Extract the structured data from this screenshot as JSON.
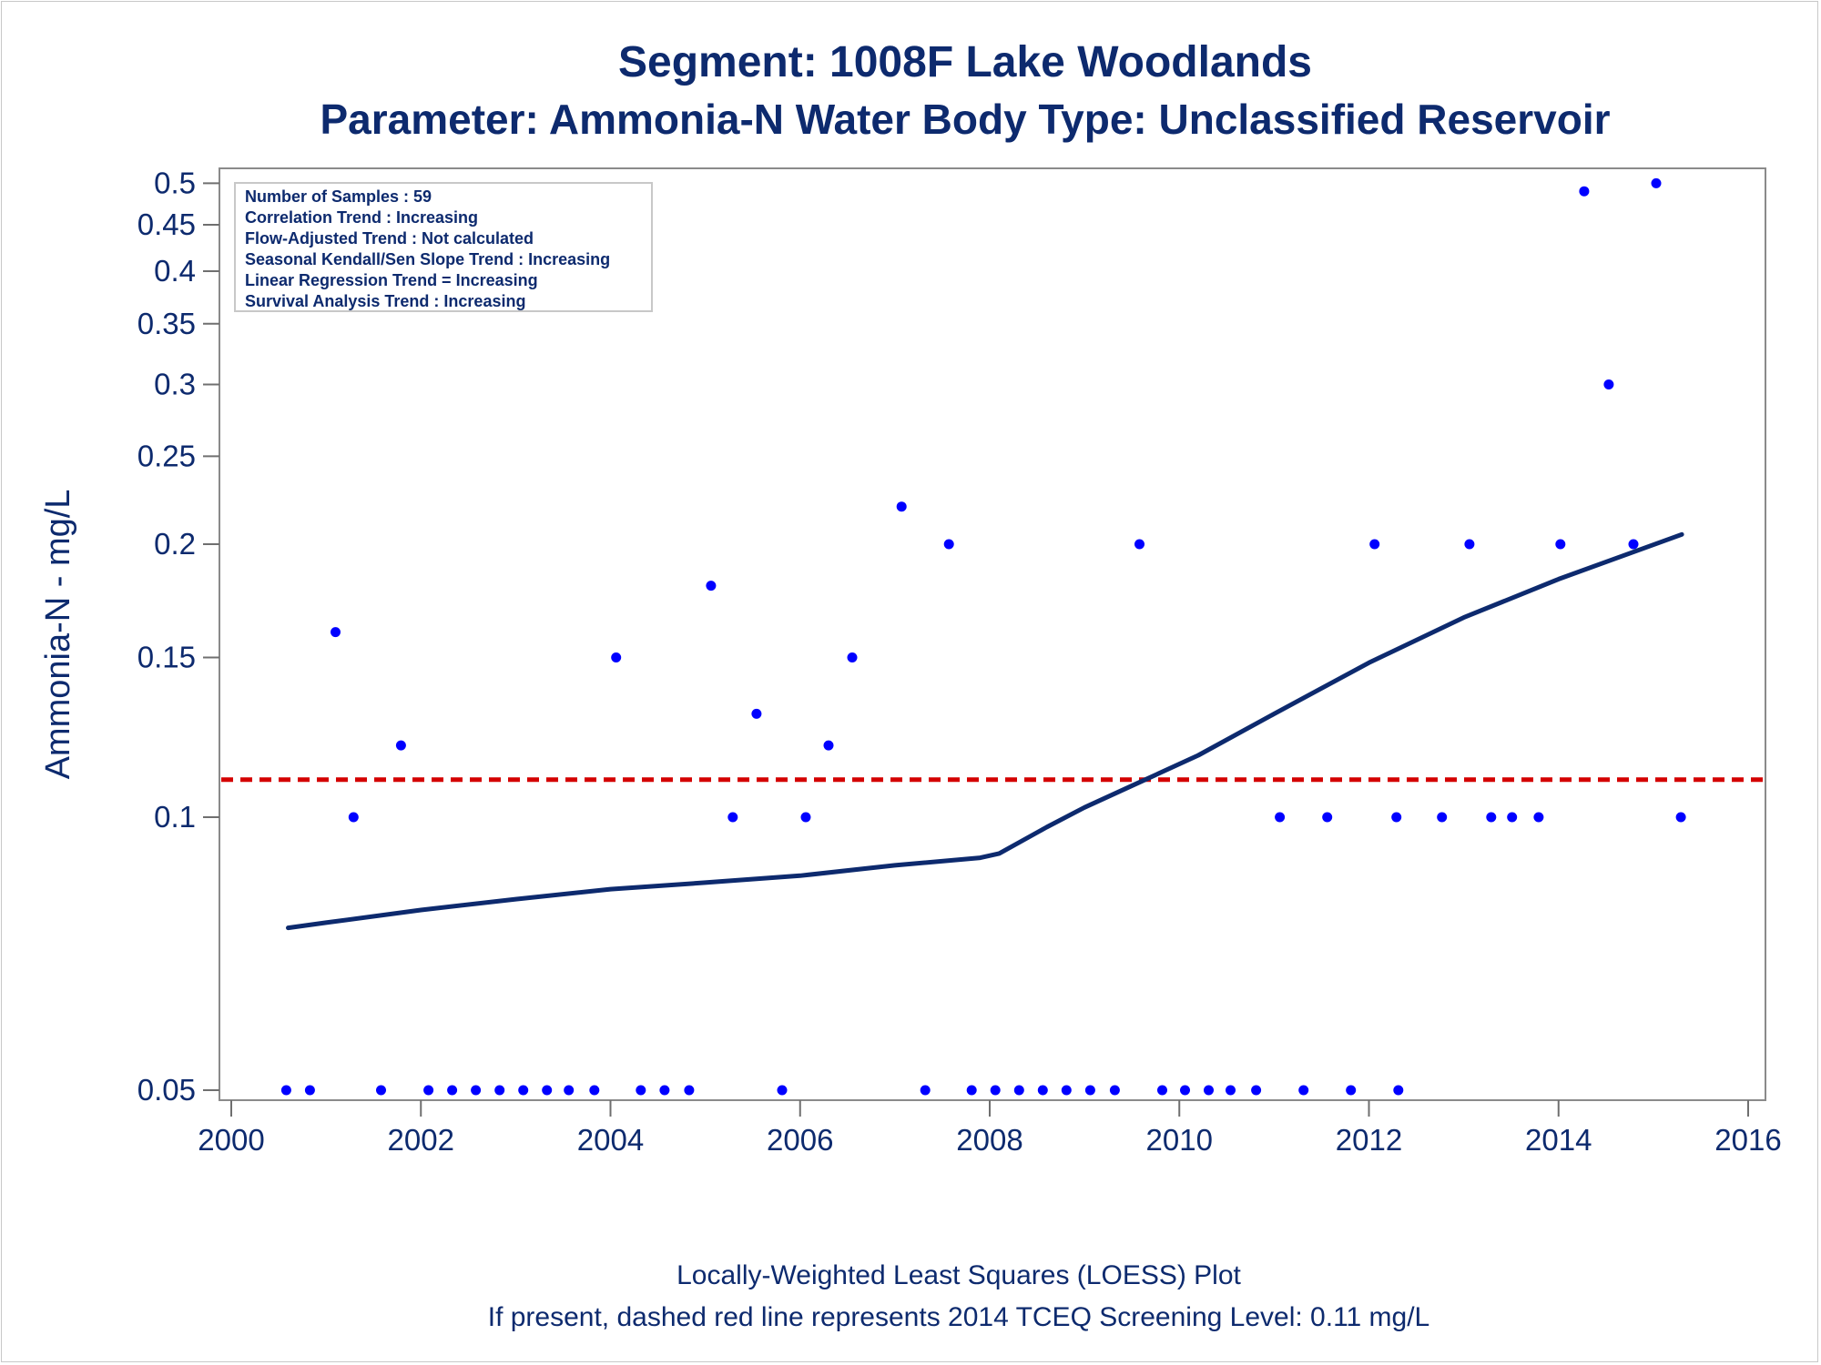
{
  "chart_data": {
    "type": "scatter",
    "title": "Segment: 1008F  Lake Woodlands",
    "subtitle": "Parameter: Ammonia-N   Water Body Type: Unclassified Reservoir",
    "ylabel": "Ammonia-N - mg/L",
    "xlabel": "",
    "footnotes": [
      "Locally-Weighted Least Squares (LOESS) Plot",
      "If present, dashed red line represents 2014 TCEQ Screening Level: 0.11 mg/L"
    ],
    "y_scale": "log",
    "xlim": [
      2000,
      2016
    ],
    "ylim": [
      0.049,
      0.51
    ],
    "x_ticks": [
      2000,
      2002,
      2004,
      2006,
      2008,
      2010,
      2012,
      2014,
      2016
    ],
    "y_ticks": [
      0.05,
      0.1,
      0.15,
      0.2,
      0.25,
      0.3,
      0.35,
      0.4,
      0.45,
      0.5
    ],
    "grid": false,
    "legend_position": "top-left",
    "stats_box": [
      "Number of Samples : 59",
      "Correlation Trend : Increasing",
      "Flow-Adjusted Trend : Not calculated",
      "Seasonal Kendall/Sen Slope Trend : Increasing",
      "Linear Regression Trend = Increasing",
      "Survival Analysis Trend : Increasing"
    ],
    "screening_level": {
      "value": 0.11,
      "color": "#d40000",
      "style": "dashed"
    },
    "points": {
      "color": "#0000ff",
      "x": [
        2000.58,
        2000.83,
        2001.58,
        2002.08,
        2002.33,
        2002.58,
        2002.83,
        2003.08,
        2003.33,
        2003.56,
        2003.83,
        2004.32,
        2004.57,
        2004.83,
        2005.81,
        2007.32,
        2007.81,
        2008.06,
        2008.31,
        2008.56,
        2008.81,
        2009.06,
        2009.32,
        2009.82,
        2010.06,
        2010.31,
        2010.54,
        2010.81,
        2011.31,
        2011.81,
        2012.31,
        2001.29,
        2005.29,
        2006.06,
        2011.06,
        2011.56,
        2012.29,
        2012.77,
        2013.29,
        2013.51,
        2013.79,
        2015.29,
        2001.1,
        2001.79,
        2004.06,
        2005.06,
        2005.54,
        2006.3,
        2006.55,
        2007.07,
        2007.57,
        2009.58,
        2012.06,
        2013.06,
        2014.02,
        2014.27,
        2014.53,
        2014.79,
        2015.03
      ],
      "y": [
        0.05,
        0.05,
        0.05,
        0.05,
        0.05,
        0.05,
        0.05,
        0.05,
        0.05,
        0.05,
        0.05,
        0.05,
        0.05,
        0.05,
        0.05,
        0.05,
        0.05,
        0.05,
        0.05,
        0.05,
        0.05,
        0.05,
        0.05,
        0.05,
        0.05,
        0.05,
        0.05,
        0.05,
        0.05,
        0.05,
        0.05,
        0.1,
        0.1,
        0.1,
        0.1,
        0.1,
        0.1,
        0.1,
        0.1,
        0.1,
        0.1,
        0.1,
        0.16,
        0.12,
        0.15,
        0.18,
        0.13,
        0.12,
        0.15,
        0.22,
        0.2,
        0.2,
        0.2,
        0.2,
        0.2,
        0.49,
        0.3,
        0.2,
        0.5
      ]
    },
    "loess_line": {
      "color": "#0d2a6e",
      "x": [
        2000.6,
        2001.0,
        2002.0,
        2003.0,
        2004.0,
        2005.0,
        2006.0,
        2007.0,
        2007.9,
        2008.1,
        2008.6,
        2009.0,
        2009.6,
        2010.2,
        2011.0,
        2012.0,
        2013.0,
        2014.0,
        2015.3
      ],
      "y": [
        0.0755,
        0.0765,
        0.079,
        0.0812,
        0.0833,
        0.0847,
        0.0862,
        0.0885,
        0.0902,
        0.0912,
        0.0975,
        0.1025,
        0.1095,
        0.117,
        0.13,
        0.148,
        0.166,
        0.183,
        0.205
      ]
    }
  }
}
